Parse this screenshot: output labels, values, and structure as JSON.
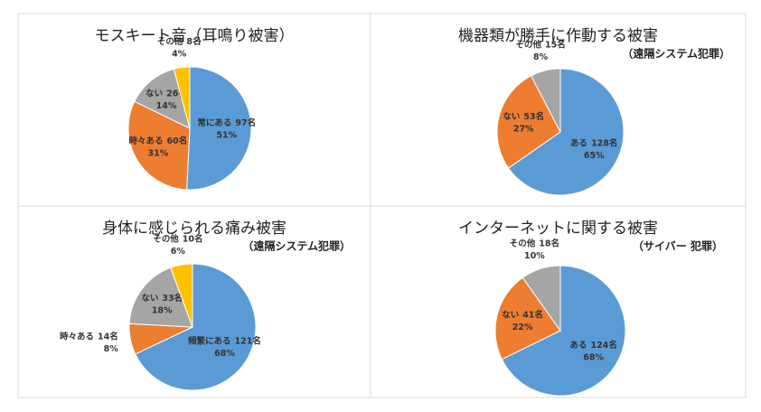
{
  "chart_data": [
    {
      "type": "pie",
      "title": "モスキート音（耳鳴り被害）",
      "categories": [
        "常にある",
        "時々ある",
        "ない",
        "その他"
      ],
      "values": [
        97,
        60,
        26,
        8
      ],
      "value_labels": [
        "97名",
        "60名",
        "26名",
        "8名"
      ],
      "percents": [
        51,
        31,
        14,
        4
      ],
      "percent_labels": [
        "51%",
        "31%",
        "14%",
        "4%"
      ],
      "colors": [
        "#5b9bd5",
        "#ed7d31",
        "#a5a5a5",
        "#ffc000"
      ]
    },
    {
      "type": "pie",
      "title": "機器類が勝手に作動する被害",
      "subtitle": "（遠隔システム犯罪）",
      "categories": [
        "ある",
        "ない",
        "その他"
      ],
      "values": [
        128,
        53,
        15
      ],
      "value_labels": [
        "128名",
        "53名",
        "15名"
      ],
      "percents": [
        65,
        27,
        8
      ],
      "percent_labels": [
        "65%",
        "27%",
        "8%"
      ],
      "colors": [
        "#5b9bd5",
        "#ed7d31",
        "#a5a5a5"
      ]
    },
    {
      "type": "pie",
      "title": "身体に感じられる痛み被害",
      "subtitle": "（遠隔システム犯罪）",
      "categories": [
        "頻繁にある",
        "時々ある",
        "ない",
        "その他"
      ],
      "values": [
        121,
        14,
        33,
        10
      ],
      "value_labels": [
        "121名",
        "14名",
        "33名",
        "10名"
      ],
      "percents": [
        68,
        8,
        18,
        6
      ],
      "percent_labels": [
        "68%",
        "8%",
        "18%",
        "6%"
      ],
      "colors": [
        "#5b9bd5",
        "#ed7d31",
        "#a5a5a5",
        "#ffc000"
      ]
    },
    {
      "type": "pie",
      "title": "インターネットに関する被害",
      "subtitle": "（サイバー 犯罪）",
      "categories": [
        "ある",
        "ない",
        "その他"
      ],
      "values": [
        124,
        41,
        18
      ],
      "value_labels": [
        "124名",
        "41名",
        "18名"
      ],
      "percents": [
        68,
        22,
        10
      ],
      "percent_labels": [
        "68%",
        "22%",
        "10%"
      ],
      "colors": [
        "#5b9bd5",
        "#ed7d31",
        "#a5a5a5"
      ]
    }
  ]
}
